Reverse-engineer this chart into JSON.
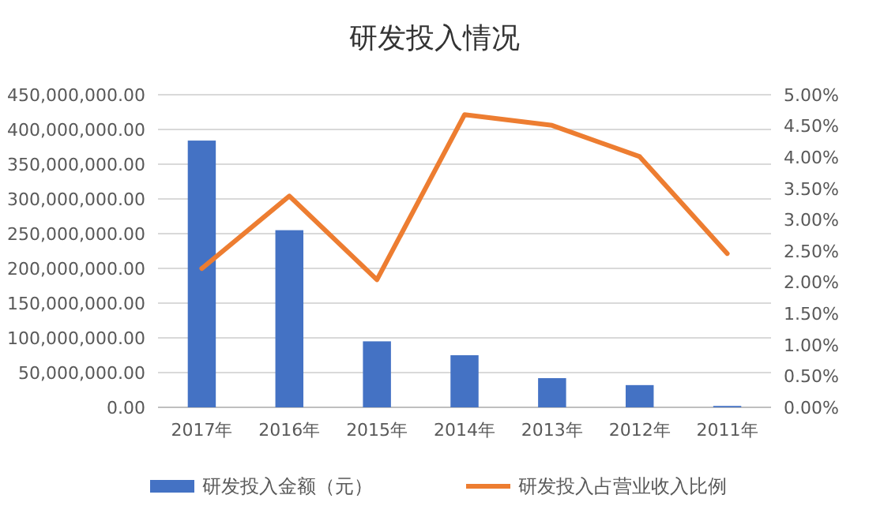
{
  "chart_data": {
    "type": "bar",
    "title": "研发投入情况",
    "categories": [
      "2017年",
      "2016年",
      "2015年",
      "2014年",
      "2013年",
      "2012年",
      "2011年"
    ],
    "series": [
      {
        "name": "研发投入金额（元）",
        "color": "#4472c4",
        "values": [
          384000000,
          255000000,
          95000000,
          75000000,
          42000000,
          32000000,
          2000000
        ]
      },
      {
        "name": "研发投入占营业收入比例",
        "type": "line",
        "axis": "y2",
        "color": "#ed7d31",
        "values": [
          2.22,
          3.38,
          2.04,
          4.68,
          4.51,
          4.01,
          2.46
        ]
      }
    ],
    "ylim": [
      0,
      450000000
    ],
    "yticks": [
      {
        "value": 0,
        "label": "0.00"
      },
      {
        "value": 50000000,
        "label": "50,000,000.00"
      },
      {
        "value": 100000000,
        "label": "100,000,000.00"
      },
      {
        "value": 150000000,
        "label": "150,000,000.00"
      },
      {
        "value": 200000000,
        "label": "200,000,000.00"
      },
      {
        "value": 250000000,
        "label": "250,000,000.00"
      },
      {
        "value": 300000000,
        "label": "300,000,000.00"
      },
      {
        "value": 350000000,
        "label": "350,000,000.00"
      },
      {
        "value": 400000000,
        "label": "400,000,000.00"
      },
      {
        "value": 450000000,
        "label": "450,000,000.00"
      }
    ],
    "y2lim": [
      0,
      5
    ],
    "y2ticks": [
      {
        "value": 0,
        "label": "0.00%"
      },
      {
        "value": 0.5,
        "label": "0.50%"
      },
      {
        "value": 1,
        "label": "1.00%"
      },
      {
        "value": 1.5,
        "label": "1.50%"
      },
      {
        "value": 2,
        "label": "2.00%"
      },
      {
        "value": 2.5,
        "label": "2.50%"
      },
      {
        "value": 3,
        "label": "3.00%"
      },
      {
        "value": 3.5,
        "label": "3.50%"
      },
      {
        "value": 4,
        "label": "4.00%"
      },
      {
        "value": 4.5,
        "label": "4.50%"
      },
      {
        "value": 5,
        "label": "5.00%"
      }
    ],
    "grid": "y",
    "legend": "bottom",
    "marker": "none",
    "line_style": "solid"
  }
}
